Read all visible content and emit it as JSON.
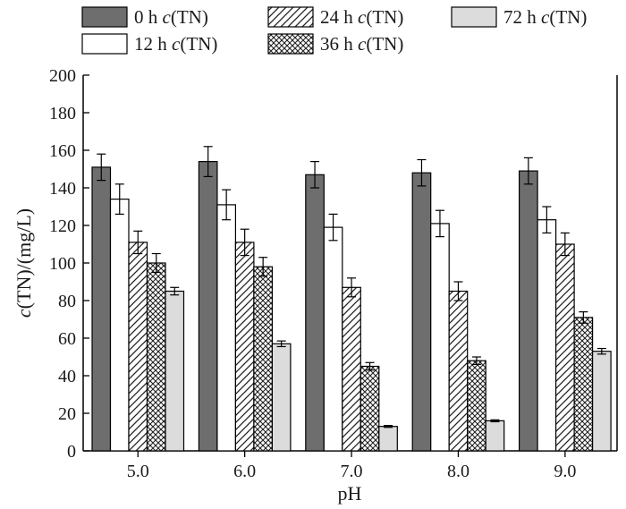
{
  "chart_data": {
    "type": "bar",
    "xlabel": "pH",
    "ylabel_prefix": "c",
    "ylabel_rest": "(TN)/(mg/L)",
    "ylim": [
      0,
      200
    ],
    "yticks": [
      0,
      20,
      40,
      60,
      80,
      100,
      120,
      140,
      160,
      180,
      200
    ],
    "ytick_labels": [
      "0",
      "20",
      "40",
      "60",
      "80",
      "100",
      "120",
      "140",
      "160",
      "180",
      "200"
    ],
    "categories": [
      "5.0",
      "6.0",
      "7.0",
      "8.0",
      "9.0"
    ],
    "error_bars": true,
    "legend_position": "top",
    "series": [
      {
        "name": "0 h c(TN)",
        "name_prefix": "0 h ",
        "name_var": "c",
        "name_suffix": "(TN)",
        "fill": "solid-dark",
        "color": "#6e6e6e",
        "values": [
          151,
          154,
          147,
          148,
          149
        ],
        "errors": [
          7,
          8,
          7,
          7,
          7
        ]
      },
      {
        "name": "12 h c(TN)",
        "name_prefix": "12 h ",
        "name_var": "c",
        "name_suffix": "(TN)",
        "fill": "white",
        "color": "#ffffff",
        "values": [
          134,
          131,
          119,
          121,
          123
        ],
        "errors": [
          8,
          8,
          7,
          7,
          7
        ]
      },
      {
        "name": "24 h c(TN)",
        "name_prefix": "24 h ",
        "name_var": "c",
        "name_suffix": "(TN)",
        "fill": "diagonal-hatch",
        "color": "#333333",
        "values": [
          111,
          111,
          87,
          85,
          110
        ],
        "errors": [
          6,
          7,
          5,
          5,
          6
        ]
      },
      {
        "name": "36 h c(TN)",
        "name_prefix": "36 h ",
        "name_var": "c",
        "name_suffix": "(TN)",
        "fill": "cross-hatch",
        "color": "#333333",
        "values": [
          100,
          98,
          45,
          48,
          71
        ],
        "errors": [
          5,
          5,
          2,
          2,
          3
        ]
      },
      {
        "name": "72 h c(TN)",
        "name_prefix": "72 h ",
        "name_var": "c",
        "name_suffix": "(TN)",
        "fill": "solid-light",
        "color": "#dcdcdc",
        "values": [
          85,
          57,
          13,
          16,
          53
        ],
        "errors": [
          2,
          1.5,
          0.5,
          0.5,
          1.5
        ]
      }
    ]
  }
}
